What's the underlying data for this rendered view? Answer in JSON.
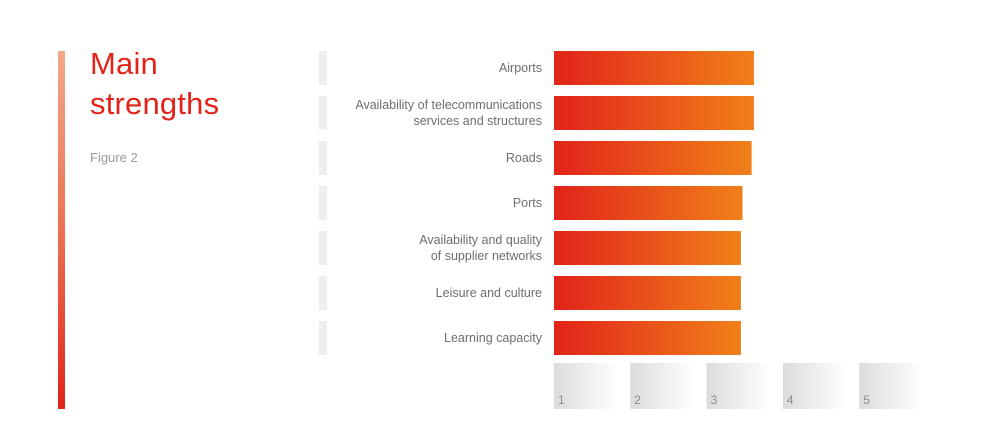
{
  "title": "Main strengths",
  "subtitle": "Figure 2",
  "colors": {
    "accent": "#e2231a",
    "bar_start": "#e2231a",
    "bar_end": "#f08019",
    "row_marker": "#eeeeee"
  },
  "chart_data": {
    "type": "bar",
    "orientation": "horizontal",
    "categories": [
      "Airports",
      "Availability of telecommunications services and structures",
      "Roads",
      "Ports",
      "Availability and quality of supplier networks",
      "Leisure and culture",
      "Learning capacity"
    ],
    "category_lines": [
      [
        "Airports"
      ],
      [
        "Availability of telecommunications",
        "services and structures"
      ],
      [
        "Roads"
      ],
      [
        "Ports"
      ],
      [
        "Availability and quality",
        "of supplier networks"
      ],
      [
        "Leisure and culture"
      ],
      [
        "Learning capacity"
      ]
    ],
    "values": [
      3.62,
      3.62,
      3.59,
      3.47,
      3.45,
      3.45,
      3.45
    ],
    "xlim": [
      1,
      5
    ],
    "xticks": [
      "1",
      "2",
      "3",
      "4",
      "5"
    ],
    "xlabel": "",
    "ylabel": ""
  }
}
